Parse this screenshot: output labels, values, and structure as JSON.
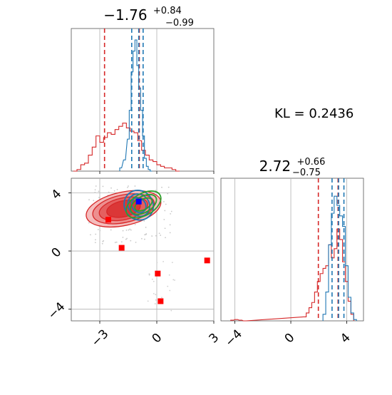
{
  "chart_data": [
    {
      "type": "histogram",
      "panel": "x1-marginal",
      "title_value": "−1.76",
      "title_plus": "+0.84",
      "title_minus": "−0.99",
      "xlim": [
        -4.5,
        3.0
      ],
      "grid": true,
      "series": [
        {
          "color": "#d62728",
          "x": [
            -4.3,
            -4.1,
            -3.9,
            -3.7,
            -3.5,
            -3.3,
            -3.1,
            -2.9,
            -2.7,
            -2.5,
            -2.3,
            -2.1,
            -1.9,
            -1.7,
            -1.5,
            -1.3,
            -1.1,
            -0.9,
            -0.7,
            -0.5,
            -0.3,
            -0.1,
            0.1,
            0.3,
            0.5,
            0.7,
            0.9,
            1.1
          ],
          "density": [
            0.0,
            0.01,
            0.04,
            0.05,
            0.1,
            0.15,
            0.22,
            0.18,
            0.21,
            0.24,
            0.23,
            0.26,
            0.28,
            0.3,
            0.27,
            0.25,
            0.24,
            0.19,
            0.13,
            0.1,
            0.07,
            0.06,
            0.04,
            0.03,
            0.02,
            0.02,
            0.01,
            0.0
          ],
          "quantiles": [
            -2.75,
            -0.92
          ]
        },
        {
          "color": "#1f77b4",
          "x": [
            -1.9,
            -1.7,
            -1.5,
            -1.4,
            -1.3,
            -1.2,
            -1.1,
            -1.0,
            -0.9,
            -0.8,
            -0.7,
            -0.6,
            -0.5,
            -0.4,
            -0.3
          ],
          "density": [
            0.02,
            0.07,
            0.2,
            0.38,
            0.62,
            0.75,
            0.82,
            0.66,
            0.52,
            0.38,
            0.22,
            0.08,
            0.03,
            0.01,
            0.0
          ],
          "quantiles": [
            -1.32,
            -0.95,
            -0.72
          ]
        }
      ]
    },
    {
      "type": "scatter",
      "panel": "x1-x2-joint",
      "xlim": [
        -4.5,
        3.0
      ],
      "ylim": [
        -4.8,
        5.0
      ],
      "xticks": [
        -3,
        0,
        3
      ],
      "yticks": [
        -4,
        0,
        4
      ],
      "xtick_labels": [
        "−3",
        "0",
        "3"
      ],
      "ytick_labels": [
        "−4",
        "0",
        "4"
      ],
      "grid": true,
      "red_markers": [
        {
          "x": -2.55,
          "y": 2.15
        },
        {
          "x": -1.85,
          "y": 0.22
        },
        {
          "x": 0.05,
          "y": -1.55
        },
        {
          "x": 2.65,
          "y": -0.65
        },
        {
          "x": 0.2,
          "y": -3.45
        }
      ],
      "blue_marker": {
        "x": -0.95,
        "y": 3.4
      },
      "contours": [
        {
          "color": "#d62728",
          "cx": -1.75,
          "cy": 2.9,
          "levels": [
            [
              2.0,
              1.15,
              -12
            ],
            [
              1.65,
              0.95,
              -12
            ],
            [
              1.3,
              0.75,
              -12
            ],
            [
              0.9,
              0.55,
              -12
            ]
          ]
        },
        {
          "color": "#1f77b4",
          "cx": -0.95,
          "cy": 3.15,
          "levels": [
            [
              0.75,
              1.05,
              -40
            ],
            [
              0.55,
              0.8,
              -40
            ],
            [
              0.35,
              0.55,
              -40
            ]
          ]
        },
        {
          "color": "#2ca02c",
          "cx": -0.7,
          "cy": 3.2,
          "levels": [
            [
              1.0,
              0.75,
              -30
            ],
            [
              0.75,
              0.55,
              -30
            ],
            [
              0.5,
              0.35,
              -30
            ]
          ]
        }
      ]
    },
    {
      "type": "histogram",
      "panel": "x2-marginal",
      "title_value": "2.72",
      "title_plus": "+0.66",
      "title_minus": "−0.75",
      "xlim": [
        -5.0,
        5.2
      ],
      "xticks": [
        -4,
        0,
        4
      ],
      "xtick_labels": [
        "−4",
        "0",
        "4"
      ],
      "grid": true,
      "series": [
        {
          "color": "#d62728",
          "x": [
            -4.2,
            -3.9,
            -3.6,
            -3.3,
            1.0,
            1.2,
            1.4,
            1.6,
            1.8,
            2.0,
            2.2,
            2.4,
            2.6,
            2.8,
            3.0,
            3.2,
            3.4,
            3.6,
            3.8,
            4.0,
            4.2,
            4.4
          ],
          "density": [
            0.005,
            0.01,
            0.005,
            0.0,
            0.03,
            0.06,
            0.1,
            0.14,
            0.22,
            0.3,
            0.36,
            0.4,
            0.42,
            0.58,
            0.48,
            0.55,
            0.7,
            0.62,
            0.45,
            0.3,
            0.15,
            0.05
          ],
          "quantiles": [
            1.97,
            3.38
          ]
        },
        {
          "color": "#1f77b4",
          "x": [
            2.4,
            2.6,
            2.8,
            3.0,
            3.2,
            3.4,
            3.6,
            3.8,
            4.0,
            4.2,
            4.4,
            4.6
          ],
          "density": [
            0.05,
            0.22,
            0.58,
            0.82,
            0.95,
            0.88,
            0.8,
            0.72,
            0.42,
            0.18,
            0.06,
            0.01
          ],
          "quantiles": [
            2.95,
            3.42,
            3.8
          ]
        }
      ]
    }
  ],
  "annotation": {
    "kl_text": "KL = 0.2436"
  }
}
